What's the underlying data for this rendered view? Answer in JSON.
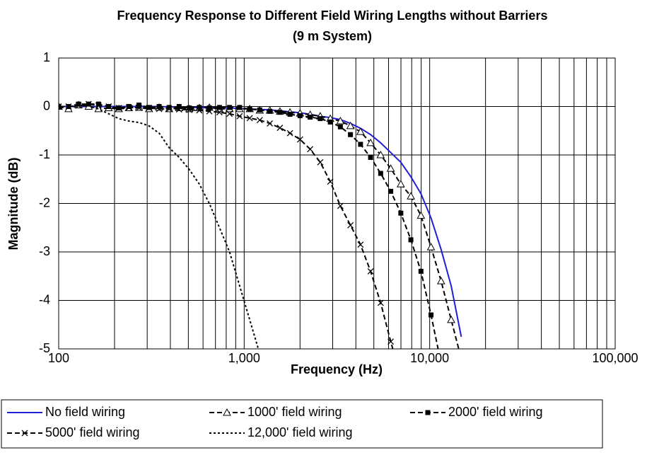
{
  "chart_data": {
    "type": "line",
    "title": "Frequency Response to Different Field Wiring Lengths without Barriers (9 m System)",
    "x_label": "Frequency (Hz)",
    "y_label": "Magnitude (dB)",
    "x_log": true,
    "grid": true,
    "minor_grid": true,
    "legend": "bottom",
    "xlim": [
      100,
      100000
    ],
    "xticks": [
      100,
      {
        "value": 1000,
        "label": "1,000"
      },
      {
        "value": 10000,
        "label": "10,000"
      },
      {
        "value": 100000,
        "label": "100,000"
      }
    ],
    "ylim": [
      -5,
      1
    ],
    "yticks": [
      1,
      0,
      -1,
      -2,
      -3,
      -4,
      -5
    ],
    "x": [
      100,
      113,
      128,
      145,
      164,
      186,
      211,
      239,
      271,
      307,
      348,
      394,
      446,
      506,
      573,
      649,
      736,
      834,
      945,
      1071,
      1213,
      1375,
      1558,
      1766,
      2001,
      2268,
      2570,
      2912,
      3300,
      3740,
      4238,
      4802,
      5442,
      6167,
      6988,
      7919,
      8974,
      10169,
      11524,
      13059,
      14798
    ],
    "series": [
      {
        "name": "No field wiring",
        "color": "#1f1fd6",
        "line_style": "solid",
        "marker": null,
        "values": [
          0,
          0,
          0,
          0,
          0,
          0,
          0,
          0,
          0,
          0,
          0,
          -0.01,
          -0.01,
          -0.02,
          -0.02,
          -0.02,
          -0.03,
          -0.03,
          -0.04,
          -0.05,
          -0.06,
          -0.07,
          -0.09,
          -0.11,
          -0.13,
          -0.16,
          -0.2,
          -0.23,
          -0.27,
          -0.35,
          -0.45,
          -0.58,
          -0.75,
          -0.95,
          -1.15,
          -1.45,
          -1.8,
          -2.3,
          -2.95,
          -3.7,
          -4.75
        ]
      },
      {
        "name": "1000' field wiring",
        "color": "#000000",
        "line_style": "dashed",
        "marker": "triangle",
        "values": [
          0,
          -0.05,
          0.03,
          0,
          -0.05,
          -0.03,
          -0.05,
          -0.03,
          -0.02,
          -0.05,
          -0.02,
          -0.05,
          -0.03,
          -0.05,
          -0.03,
          -0.02,
          -0.05,
          -0.05,
          -0.05,
          -0.05,
          -0.08,
          -0.08,
          -0.1,
          -0.12,
          -0.14,
          -0.17,
          -0.2,
          -0.25,
          -0.3,
          -0.4,
          -0.52,
          -0.75,
          -1.0,
          -1.28,
          -1.6,
          -1.85,
          -2.25,
          -2.9,
          -3.6,
          -4.4,
          -5.2
        ]
      },
      {
        "name": "2000' field wiring",
        "color": "#000000",
        "line_style": "dashed",
        "marker": "square",
        "values": [
          0,
          0,
          0.05,
          0.05,
          0.05,
          0,
          -0.03,
          0,
          0.03,
          -0.02,
          0,
          -0.02,
          0,
          -0.03,
          -0.02,
          -0.03,
          -0.02,
          -0.02,
          -0.02,
          -0.05,
          -0.07,
          -0.1,
          -0.12,
          -0.16,
          -0.19,
          -0.22,
          -0.25,
          -0.32,
          -0.42,
          -0.58,
          -0.78,
          -1.05,
          -1.38,
          -1.75,
          -2.2,
          -2.75,
          -3.4,
          -4.3,
          -5.3,
          null,
          null
        ]
      },
      {
        "name": "5000' field wiring",
        "color": "#000000",
        "line_style": "dashed",
        "marker": "x",
        "values": [
          0,
          0,
          0.02,
          0.05,
          0.02,
          0,
          -0.03,
          -0.02,
          -0.03,
          -0.03,
          -0.05,
          -0.05,
          -0.06,
          -0.07,
          -0.08,
          -0.1,
          -0.12,
          -0.15,
          -0.2,
          -0.24,
          -0.28,
          -0.35,
          -0.44,
          -0.55,
          -0.68,
          -0.88,
          -1.15,
          -1.55,
          -2.05,
          -2.45,
          -2.85,
          -3.4,
          -4.05,
          -4.85,
          -5.6,
          null,
          null,
          null,
          null,
          null,
          null
        ]
      },
      {
        "name": "12,000' field wiring",
        "color": "#000000",
        "line_style": "dotted",
        "marker": null,
        "values": [
          0,
          0,
          0.02,
          0.02,
          -0.05,
          -0.15,
          -0.25,
          -0.3,
          -0.33,
          -0.4,
          -0.55,
          -0.85,
          -1.05,
          -1.3,
          -1.6,
          -2.0,
          -2.5,
          -3.0,
          -3.7,
          -4.4,
          -5.1,
          null,
          null,
          null,
          null,
          null,
          null,
          null,
          null,
          null,
          null,
          null,
          null,
          null,
          null,
          null,
          null,
          null,
          null,
          null,
          null
        ]
      }
    ]
  }
}
